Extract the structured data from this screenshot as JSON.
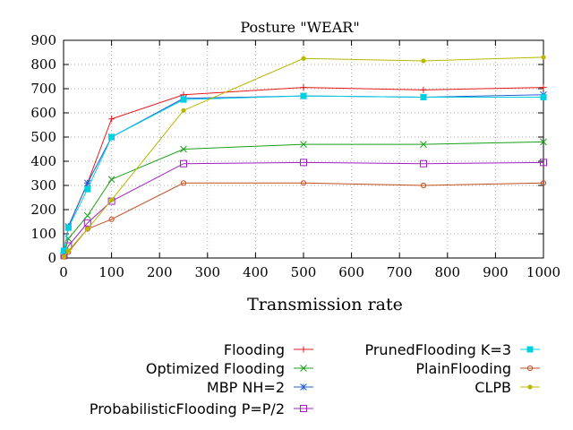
{
  "chart_data": {
    "type": "line",
    "title": "Posture \"WEAR\"",
    "xlabel": "Transmission rate",
    "ylabel": "",
    "xlim": [
      0,
      1000
    ],
    "ylim": [
      0,
      900
    ],
    "xticks": [
      0,
      100,
      200,
      300,
      400,
      500,
      600,
      700,
      800,
      900,
      1000
    ],
    "yticks": [
      0,
      100,
      200,
      300,
      400,
      500,
      600,
      700,
      800,
      900
    ],
    "grid": true,
    "legend_position": "below",
    "x": [
      1,
      10,
      50,
      100,
      250,
      500,
      750,
      1000
    ],
    "series": [
      {
        "name": "Flooding",
        "color": "#e41a1c",
        "marker": "plus",
        "values": [
          20,
          130,
          310,
          575,
          675,
          705,
          695,
          705
        ]
      },
      {
        "name": "Optimized Flooding",
        "color": "#18a018",
        "marker": "x",
        "values": [
          15,
          80,
          175,
          325,
          450,
          470,
          470,
          480
        ]
      },
      {
        "name": "MBP NH=2",
        "color": "#1f5fd0",
        "marker": "star",
        "values": [
          20,
          130,
          310,
          500,
          660,
          670,
          665,
          675
        ]
      },
      {
        "name": "ProbabilisticFlooding P=P/2",
        "color": "#a020c0",
        "marker": "square",
        "values": [
          10,
          50,
          145,
          235,
          390,
          395,
          390,
          395
        ]
      },
      {
        "name": "PrunedFlooding K=3",
        "color": "#00d0e0",
        "marker": "filled-square",
        "values": [
          30,
          125,
          285,
          500,
          655,
          670,
          665,
          665
        ]
      },
      {
        "name": "PlainFlooding",
        "color": "#c05020",
        "marker": "circle",
        "values": [
          5,
          25,
          120,
          160,
          310,
          310,
          300,
          310
        ]
      },
      {
        "name": "CLPB",
        "color": "#b8b800",
        "marker": "filled-circle",
        "values": [
          5,
          30,
          120,
          240,
          610,
          825,
          815,
          830
        ]
      }
    ]
  }
}
